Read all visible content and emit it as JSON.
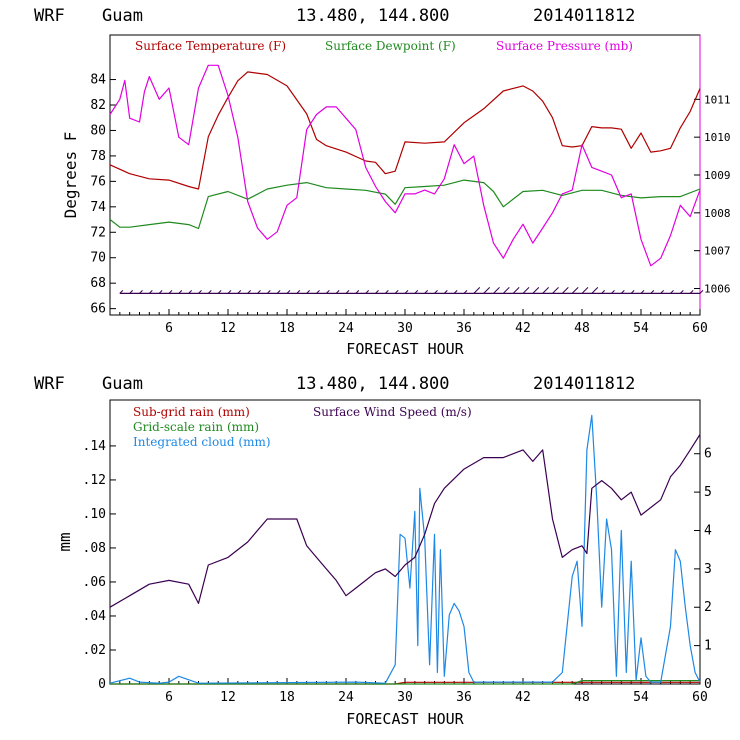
{
  "top": {
    "header": {
      "model": "WRF",
      "location": "Guam",
      "coords": "13.480, 144.800",
      "init": "2014011812"
    },
    "xlabel": "FORECAST HOUR",
    "ylabel": "Degrees F",
    "legend": [
      {
        "name": "Surface Temperature (F)",
        "color": "#b00000"
      },
      {
        "name": "Surface Dewpoint (F)",
        "color": "#1f8a1f"
      },
      {
        "name": "Surface Pressure (mb)",
        "color": "#e000e0"
      }
    ]
  },
  "bottom": {
    "header": {
      "model": "WRF",
      "location": "Guam",
      "coords": "13.480, 144.800",
      "init": "2014011812"
    },
    "xlabel": "FORECAST HOUR",
    "ylabel": "mm",
    "legend": [
      {
        "name": "Sub-grid rain (mm)",
        "color": "#b00000"
      },
      {
        "name": "Grid-scale rain (mm)",
        "color": "#1f8a1f"
      },
      {
        "name": "Integrated cloud (mm)",
        "color": "#1e88e5"
      },
      {
        "name": "Surface Wind Speed (m/s)",
        "color": "#3a0050"
      }
    ]
  },
  "chart_data": [
    {
      "type": "line",
      "title": "WRF Guam 13.480, 144.800 2014011812",
      "xlabel": "FORECAST HOUR",
      "ylabel": "Degrees F",
      "xlim": [
        0,
        60
      ],
      "ylim": [
        65.5,
        87.5
      ],
      "xticks": [
        "6",
        "12",
        "18",
        "24",
        "30",
        "36",
        "42",
        "48",
        "54",
        "60"
      ],
      "yticks": [
        "66",
        "68",
        "70",
        "72",
        "74",
        "76",
        "78",
        "80",
        "82",
        "84"
      ],
      "y2lim": [
        1005.3,
        1012.7
      ],
      "y2ticks": [
        "1006",
        "1007",
        "1008",
        "1009",
        "1010",
        "1011"
      ],
      "series": [
        {
          "name": "Surface Temperature (F)",
          "axis": "left",
          "color": "#b00000",
          "x": [
            0,
            2,
            4,
            6,
            8,
            9,
            10,
            11,
            12,
            13,
            14,
            16,
            18,
            20,
            21,
            22,
            24,
            26,
            27,
            28,
            29,
            30,
            32,
            34,
            36,
            38,
            40,
            42,
            43,
            44,
            45,
            46,
            47,
            48,
            49,
            50,
            51,
            52,
            53,
            54,
            55,
            56,
            57,
            58,
            59,
            60
          ],
          "y": [
            77.3,
            76.6,
            76.2,
            76.1,
            75.6,
            75.4,
            79.5,
            81.2,
            82.6,
            83.9,
            84.6,
            84.4,
            83.5,
            81.3,
            79.3,
            78.8,
            78.3,
            77.6,
            77.5,
            76.6,
            76.8,
            79.1,
            79.0,
            79.1,
            80.6,
            81.7,
            83.1,
            83.5,
            83.1,
            82.3,
            81.0,
            78.8,
            78.7,
            78.8,
            80.3,
            80.2,
            80.2,
            80.1,
            78.6,
            79.8,
            78.3,
            78.4,
            78.6,
            80.2,
            81.5,
            83.3
          ]
        },
        {
          "name": "Surface Dewpoint (F)",
          "axis": "left",
          "color": "#1f8a1f",
          "x": [
            0,
            1,
            2,
            4,
            6,
            8,
            9,
            10,
            12,
            14,
            16,
            18,
            20,
            22,
            24,
            26,
            28,
            29,
            30,
            32,
            34,
            36,
            38,
            39,
            40,
            42,
            44,
            46,
            48,
            50,
            52,
            54,
            56,
            58,
            60
          ],
          "y": [
            73.0,
            72.4,
            72.4,
            72.6,
            72.8,
            72.6,
            72.3,
            74.8,
            75.2,
            74.6,
            75.4,
            75.7,
            75.9,
            75.5,
            75.4,
            75.3,
            75.0,
            74.2,
            75.5,
            75.6,
            75.7,
            76.1,
            75.9,
            75.2,
            74.0,
            75.2,
            75.3,
            74.9,
            75.3,
            75.3,
            74.9,
            74.7,
            74.8,
            74.8,
            75.4
          ]
        },
        {
          "name": "Surface Pressure (mb)",
          "axis": "right",
          "color": "#e000e0",
          "x": [
            0,
            1,
            1.5,
            2,
            3,
            3.5,
            4,
            5,
            6,
            7,
            8,
            9,
            10,
            11,
            12,
            13,
            14,
            15,
            16,
            17,
            18,
            19,
            20,
            21,
            22,
            23,
            24,
            25,
            26,
            27,
            28,
            29,
            30,
            31,
            32,
            33,
            34,
            35,
            36,
            37,
            38,
            39,
            40,
            41,
            42,
            43,
            44,
            45,
            46,
            47,
            48,
            49,
            50,
            51,
            52,
            53,
            54,
            55,
            56,
            57,
            58,
            59,
            60
          ],
          "y": [
            1010.6,
            1011.0,
            1011.5,
            1010.5,
            1010.4,
            1011.2,
            1011.6,
            1011.0,
            1011.3,
            1010.0,
            1009.8,
            1011.3,
            1011.9,
            1011.9,
            1011.1,
            1010.0,
            1008.3,
            1007.6,
            1007.3,
            1007.5,
            1008.2,
            1008.4,
            1010.2,
            1010.6,
            1010.8,
            1010.8,
            1010.5,
            1010.2,
            1009.2,
            1008.7,
            1008.3,
            1008.0,
            1008.5,
            1008.5,
            1008.6,
            1008.5,
            1008.9,
            1009.8,
            1009.3,
            1009.5,
            1008.2,
            1007.2,
            1006.8,
            1007.3,
            1007.7,
            1007.2,
            1007.6,
            1008.0,
            1008.5,
            1008.6,
            1009.8,
            1009.2,
            1009.1,
            1009.0,
            1008.4,
            1008.5,
            1007.3,
            1006.6,
            1006.8,
            1007.4,
            1008.2,
            1007.9,
            1008.6
          ]
        },
        {
          "name": "Surface wind barbs",
          "axis": "left",
          "color": "#3a0050",
          "x": [
            1,
            60
          ],
          "y": [
            67.2,
            67.2
          ]
        }
      ]
    },
    {
      "type": "line",
      "title": "WRF Guam 13.480, 144.800 2014011812",
      "xlabel": "FORECAST HOUR",
      "ylabel": "mm",
      "xlim": [
        0,
        60
      ],
      "ylim": [
        0,
        0.167
      ],
      "xticks": [
        "6",
        "12",
        "18",
        "24",
        "30",
        "36",
        "42",
        "48",
        "54",
        "60"
      ],
      "yticks": [
        "0",
        ".02",
        ".04",
        ".06",
        ".08",
        ".10",
        ".12",
        ".14"
      ],
      "y2lim": [
        0,
        7.4
      ],
      "y2ticks": [
        "0",
        "1",
        "2",
        "3",
        "4",
        "5",
        "6"
      ],
      "series": [
        {
          "name": "Sub-grid rain (mm)",
          "axis": "left",
          "color": "#b00000",
          "x": [
            0,
            29,
            30,
            31,
            36,
            44,
            48,
            60
          ],
          "y": [
            0,
            0,
            0.001,
            0.001,
            0.001,
            0.001,
            0.001,
            0.001
          ]
        },
        {
          "name": "Grid-scale rain (mm)",
          "axis": "left",
          "color": "#1f8a1f",
          "x": [
            0,
            47,
            48,
            60
          ],
          "y": [
            0,
            0,
            0.002,
            0.002
          ]
        },
        {
          "name": "Integrated cloud (mm)",
          "axis": "right",
          "color": "#1e88e5",
          "x": [
            0,
            2,
            3,
            5,
            6,
            7,
            9,
            25,
            28,
            29,
            29.5,
            30,
            30.5,
            31,
            31.3,
            31.5,
            32,
            32.5,
            33,
            33.3,
            33.6,
            34,
            34.5,
            35,
            35.5,
            36,
            36.5,
            37,
            38,
            45,
            46,
            47,
            47.5,
            48,
            48.5,
            49,
            49.5,
            50,
            50.5,
            51,
            51.5,
            52,
            52.5,
            53,
            53.5,
            54,
            54.5,
            55,
            56,
            57,
            57.5,
            58,
            58.5,
            59,
            59.5,
            60
          ],
          "y": [
            0.02,
            0.15,
            0.05,
            0.02,
            0.05,
            0.2,
            0.02,
            0.05,
            0.02,
            0.5,
            3.9,
            3.8,
            2.5,
            4.5,
            1.0,
            5.1,
            3.8,
            0.5,
            3.9,
            0.3,
            3.5,
            0.2,
            1.8,
            2.1,
            1.9,
            1.5,
            0.3,
            0.05,
            0.05,
            0.05,
            0.3,
            2.8,
            3.2,
            1.5,
            6.1,
            7.0,
            4.8,
            2.0,
            4.3,
            3.5,
            0.2,
            4.0,
            0.3,
            3.2,
            0.1,
            1.2,
            0.2,
            0.05,
            0.05,
            1.5,
            3.5,
            3.2,
            2.0,
            1.0,
            0.3,
            0.05
          ]
        },
        {
          "name": "Surface Wind Speed (m/s)",
          "axis": "right",
          "color": "#3a0050",
          "x": [
            0,
            2,
            4,
            6,
            8,
            9,
            10,
            12,
            14,
            16,
            18,
            19,
            20,
            21,
            22,
            23,
            24,
            25,
            26,
            27,
            28,
            29,
            30,
            31,
            32,
            33,
            34,
            36,
            38,
            40,
            42,
            43,
            44,
            45,
            46,
            47,
            48,
            48.5,
            49,
            50,
            51,
            52,
            53,
            54,
            55,
            56,
            57,
            58,
            59,
            60
          ],
          "y": [
            2.0,
            2.3,
            2.6,
            2.7,
            2.6,
            2.1,
            3.1,
            3.3,
            3.7,
            4.3,
            4.3,
            4.3,
            3.6,
            3.3,
            3.0,
            2.7,
            2.3,
            2.5,
            2.7,
            2.9,
            3.0,
            2.8,
            3.1,
            3.3,
            3.9,
            4.7,
            5.1,
            5.6,
            5.9,
            5.9,
            6.1,
            5.8,
            6.1,
            4.3,
            3.3,
            3.5,
            3.6,
            3.4,
            5.1,
            5.3,
            5.1,
            4.8,
            5.0,
            4.4,
            4.6,
            4.8,
            5.4,
            5.7,
            6.1,
            6.5
          ]
        }
      ]
    }
  ]
}
